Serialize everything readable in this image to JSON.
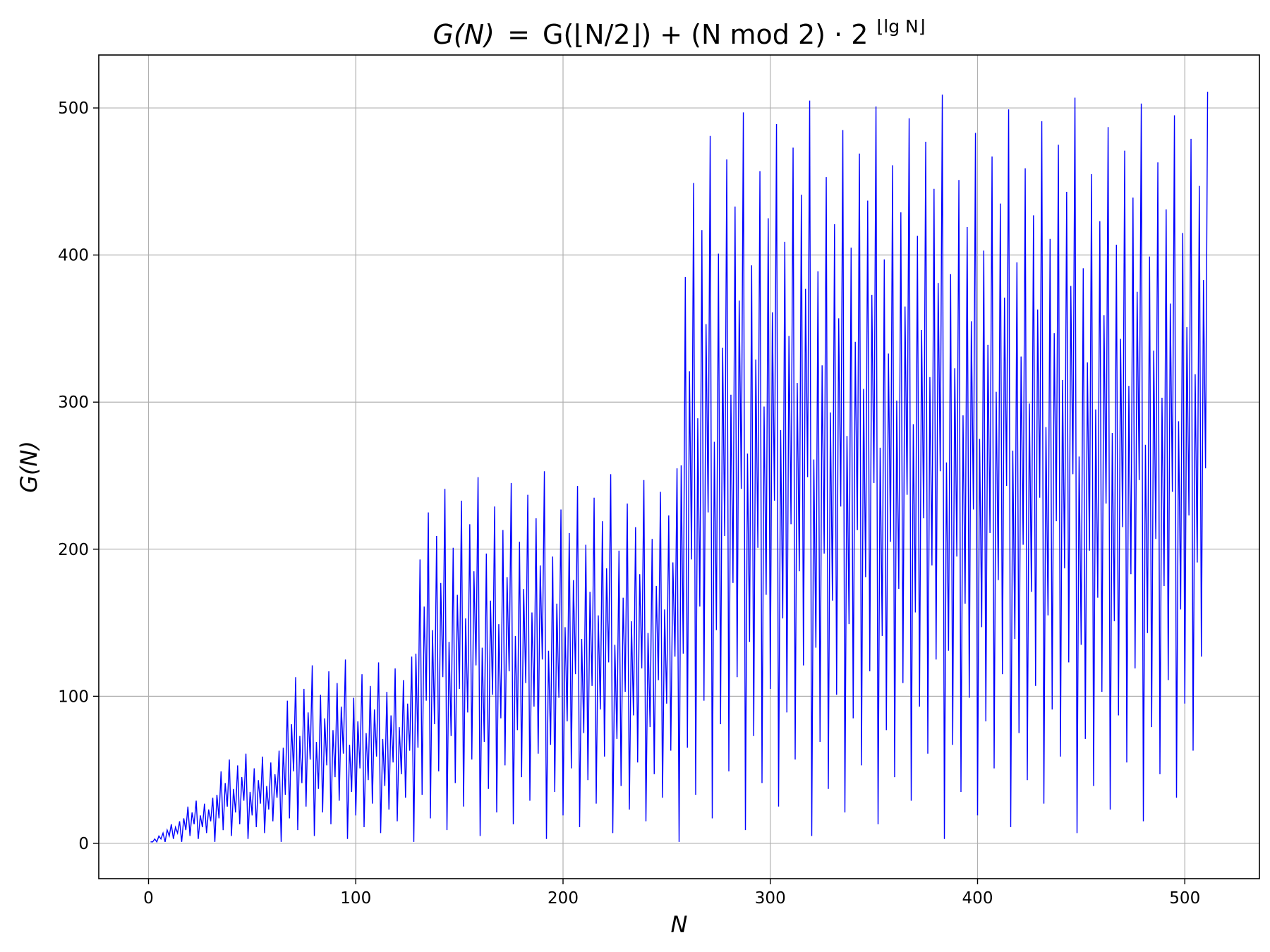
{
  "chart_data": {
    "type": "line",
    "title_parts": {
      "lhs": "G(N)",
      "eq": "=",
      "rhs": "G(⌊N/2⌋) + (N mod 2) · 2",
      "superscript": "⌊lg N⌋"
    },
    "xlabel": "N",
    "ylabel": "G(N)",
    "xlim": [
      -24,
      536
    ],
    "ylim": [
      -24,
      536
    ],
    "xticks": [
      0,
      100,
      200,
      300,
      400,
      500
    ],
    "yticks": [
      0,
      100,
      200,
      300,
      400,
      500
    ],
    "xtick_labels": [
      "0",
      "100",
      "200",
      "300",
      "400",
      "500"
    ],
    "ytick_labels": [
      "0",
      "100",
      "200",
      "300",
      "400",
      "500"
    ],
    "grid": true,
    "series": [
      {
        "color": "#0000ff",
        "rule": "G(0)=0; G(N) = G(floor(N/2)) + (N mod 2) * 2^floor(log2 N)",
        "x_start": 1,
        "x_end": 511
      }
    ]
  }
}
